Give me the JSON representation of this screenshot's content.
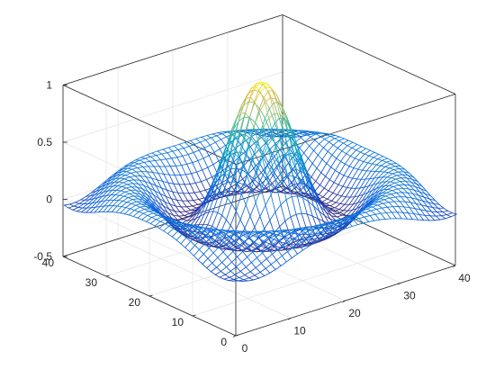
{
  "chart_data": {
    "type": "mesh",
    "function": "z = sin(r)/r, r = sqrt((x-21)^2 + (y-21)^2)/2.5 (MATLAB sinc peak)",
    "grid_size": [
      41,
      41
    ],
    "x_range": [
      0,
      40
    ],
    "y_range": [
      0,
      40
    ],
    "z_range": [
      -0.5,
      1
    ],
    "peak_value": 1,
    "colormap": "parula",
    "grid": true,
    "box": true,
    "x_ticks": [
      0,
      10,
      20,
      30,
      40
    ],
    "y_ticks": [
      0,
      10,
      20,
      30,
      40
    ],
    "z_ticks": [
      -0.5,
      0,
      0.5,
      1
    ],
    "x_tick_labels": [
      "0",
      "10",
      "20",
      "30",
      "40"
    ],
    "y_tick_labels": [
      "0",
      "10",
      "20",
      "30",
      "40"
    ],
    "z_tick_labels": [
      "-0.5",
      "0",
      "0.5",
      "1"
    ],
    "title": "",
    "xlabel": "",
    "ylabel": "",
    "zlabel": ""
  }
}
